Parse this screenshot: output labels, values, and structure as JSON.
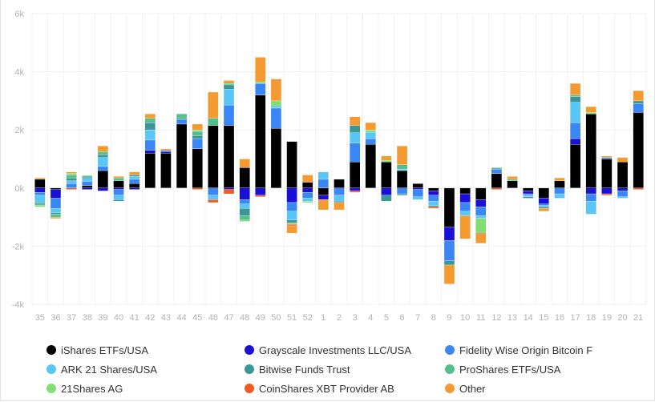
{
  "chart_data": {
    "type": "bar",
    "stacked": true,
    "title": "",
    "xlabel": "",
    "ylabel": "",
    "ylim": [
      -4000,
      6000
    ],
    "yticks": [
      6000,
      4000,
      2000,
      0,
      -2000,
      -4000
    ],
    "ytick_labels": [
      "6k",
      "4k",
      "2k",
      "0k",
      "-2k",
      "-4k"
    ],
    "grid": true,
    "legend_position": "bottom",
    "categories": [
      "35",
      "36",
      "37",
      "38",
      "39",
      "40",
      "41",
      "42",
      "43",
      "44",
      "45",
      "46",
      "47",
      "48",
      "49",
      "50",
      "51",
      "52",
      "1",
      "2",
      "3",
      "4",
      "5",
      "6",
      "7",
      "8",
      "9",
      "10",
      "11",
      "12",
      "13",
      "14",
      "15",
      "16",
      "17",
      "18",
      "19",
      "20",
      "21"
    ],
    "series": [
      {
        "name": "iShares ETFs/USA",
        "color": "#000000",
        "values": [
          300,
          -50,
          0,
          80,
          600,
          250,
          150,
          1200,
          1200,
          2200,
          1350,
          2150,
          2150,
          700,
          3200,
          2050,
          1600,
          200,
          -250,
          300,
          900,
          1500,
          900,
          600,
          150,
          -100,
          -1350,
          -200,
          -400,
          500,
          250,
          -100,
          -350,
          250,
          1500,
          2550,
          1000,
          900,
          2600
        ]
      },
      {
        "name": "Grayscale Investments LLC/USA",
        "color": "#1a0fd6",
        "values": [
          -150,
          -300,
          0,
          -50,
          -100,
          -50,
          -50,
          100,
          50,
          0,
          0,
          0,
          -50,
          -400,
          -250,
          0,
          -500,
          -150,
          -150,
          0,
          -100,
          0,
          -250,
          0,
          -50,
          -150,
          -450,
          -300,
          -250,
          0,
          0,
          -100,
          -200,
          0,
          200,
          -200,
          -200,
          -100,
          0
        ]
      },
      {
        "name": "Fidelity Wise Origin Bitcoin F",
        "color": "#3a86f5",
        "values": [
          -100,
          -350,
          150,
          150,
          150,
          -200,
          150,
          350,
          50,
          150,
          350,
          -250,
          700,
          -150,
          400,
          700,
          -300,
          -200,
          300,
          -250,
          650,
          200,
          0,
          -200,
          -250,
          -200,
          -700,
          -300,
          -300,
          150,
          0,
          -50,
          -50,
          -200,
          550,
          -250,
          50,
          -200,
          300
        ]
      },
      {
        "name": "ARK 21 Shares/USA",
        "color": "#5ac6f7",
        "values": [
          -250,
          -150,
          100,
          100,
          300,
          -150,
          100,
          350,
          0,
          0,
          0,
          -150,
          550,
          -150,
          0,
          50,
          -300,
          -100,
          250,
          -200,
          350,
          200,
          0,
          50,
          -100,
          -150,
          0,
          -150,
          -100,
          0,
          0,
          -50,
          -50,
          -150,
          700,
          -450,
          0,
          -50,
          0
        ]
      },
      {
        "name": "Bitwise Funds Trust",
        "color": "#3b9696",
        "values": [
          -50,
          -50,
          100,
          50,
          100,
          -50,
          50,
          250,
          0,
          50,
          100,
          0,
          150,
          -250,
          0,
          0,
          -100,
          0,
          0,
          -50,
          250,
          0,
          -200,
          -50,
          0,
          -50,
          -150,
          0,
          0,
          0,
          0,
          -50,
          -50,
          0,
          200,
          0,
          0,
          0,
          100
        ]
      },
      {
        "name": "ProShares ETFs/USA",
        "color": "#52bf8c",
        "values": [
          -50,
          -100,
          100,
          50,
          100,
          100,
          0,
          150,
          0,
          150,
          150,
          250,
          50,
          -150,
          0,
          50,
          0,
          0,
          0,
          0,
          0,
          50,
          0,
          150,
          0,
          0,
          0,
          0,
          0,
          50,
          50,
          0,
          0,
          0,
          50,
          0,
          0,
          0,
          0
        ]
      },
      {
        "name": "21Shares AG",
        "color": "#80df71",
        "values": [
          -50,
          0,
          50,
          0,
          0,
          0,
          0,
          0,
          0,
          0,
          50,
          0,
          0,
          -50,
          50,
          150,
          -50,
          -50,
          0,
          0,
          0,
          50,
          50,
          0,
          0,
          0,
          0,
          0,
          -500,
          0,
          0,
          0,
          0,
          0,
          0,
          50,
          0,
          0,
          0
        ]
      },
      {
        "name": "CoinShares XBT Provider AB",
        "color": "#f05a23",
        "values": [
          0,
          0,
          -50,
          0,
          0,
          0,
          0,
          0,
          0,
          0,
          -50,
          -100,
          -150,
          0,
          -50,
          0,
          -50,
          0,
          0,
          0,
          -50,
          0,
          0,
          0,
          0,
          -50,
          0,
          0,
          -50,
          -50,
          0,
          0,
          0,
          0,
          0,
          0,
          -50,
          0,
          -50
        ]
      },
      {
        "name": "Other",
        "color": "#f39a30",
        "values": [
          50,
          -50,
          50,
          0,
          200,
          50,
          100,
          150,
          50,
          0,
          200,
          900,
          100,
          300,
          850,
          750,
          -250,
          250,
          -350,
          -250,
          300,
          250,
          150,
          650,
          0,
          0,
          -650,
          -800,
          -300,
          0,
          100,
          0,
          -100,
          100,
          400,
          200,
          50,
          150,
          350
        ]
      }
    ]
  },
  "legend": [
    {
      "label": "iShares ETFs/USA",
      "color": "#000000"
    },
    {
      "label": "Grayscale Investments LLC/USA",
      "color": "#1a0fd6"
    },
    {
      "label": "Fidelity Wise Origin Bitcoin F",
      "color": "#3a86f5"
    },
    {
      "label": "ARK 21 Shares/USA",
      "color": "#5ac6f7"
    },
    {
      "label": "Bitwise Funds Trust",
      "color": "#3b9696"
    },
    {
      "label": "ProShares ETFs/USA",
      "color": "#52bf8c"
    },
    {
      "label": "21Shares AG",
      "color": "#80df71"
    },
    {
      "label": "CoinShares XBT Provider AB",
      "color": "#f05a23"
    },
    {
      "label": "Other",
      "color": "#f39a30"
    }
  ]
}
